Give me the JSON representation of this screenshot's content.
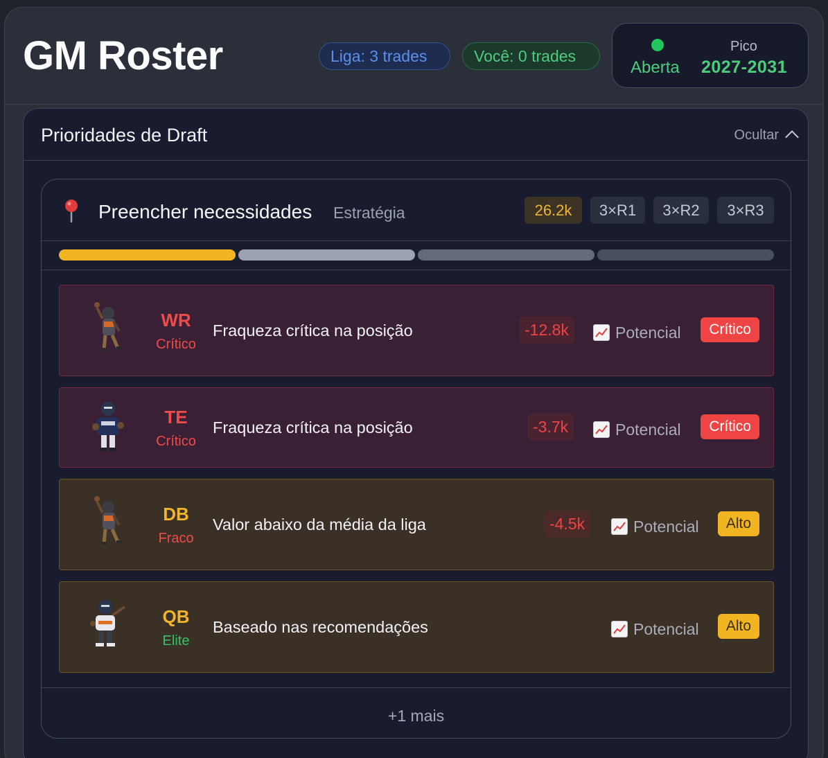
{
  "header": {
    "title": "GM Roster",
    "league_trades": "Liga: 3 trades",
    "your_trades": "Você: 0 trades",
    "status_label": "Aberta",
    "peak_label": "Pico",
    "peak_value": "2027-2031",
    "status_color": "#22c55e"
  },
  "panel": {
    "title": "Prioridades de Draft",
    "hide_label": "Ocultar"
  },
  "strategy": {
    "icon": "pin-icon",
    "title": "Preencher necessidades",
    "subtitle": "Estratégia",
    "value": "26.2k",
    "rounds": [
      "3×R1",
      "3×R2",
      "3×R3"
    ],
    "progress_colors": [
      "#f0b520",
      "#9ea3b3",
      "#646a7a",
      "#4a5060"
    ]
  },
  "needs": [
    {
      "position": "WR",
      "grade": "Crítico",
      "reason": "Fraqueza crítica na posição",
      "delta": "-12.8k",
      "potential": "Potencial",
      "badge": "Crítico"
    },
    {
      "position": "TE",
      "grade": "Crítico",
      "reason": "Fraqueza crítica na posição",
      "delta": "-3.7k",
      "potential": "Potencial",
      "badge": "Crítico"
    },
    {
      "position": "DB",
      "grade": "Fraco",
      "reason": "Valor abaixo da média da liga",
      "delta": "-4.5k",
      "potential": "Potencial",
      "badge": "Alto"
    },
    {
      "position": "QB",
      "grade": "Elite",
      "reason": "Baseado nas recomendações",
      "potential": "Potencial",
      "badge": "Alto"
    }
  ],
  "more_label": "+1 mais"
}
